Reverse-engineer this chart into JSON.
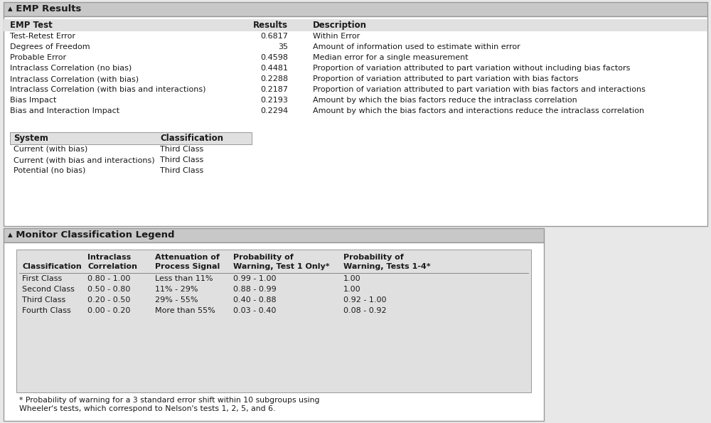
{
  "bg_color": "#e8e8e8",
  "panel_bg": "#ffffff",
  "section_header_bg": "#c8c8c8",
  "inner_table_bg": "#e0e0e0",
  "title1": "▴ EMP Results",
  "title2": "▴ Monitor Classification Legend",
  "emp_header": [
    "EMP Test",
    "Results",
    "Description"
  ],
  "emp_rows": [
    [
      "Test-Retest Error",
      "0.6817",
      "Within Error"
    ],
    [
      "Degrees of Freedom",
      "35",
      "Amount of information used to estimate within error"
    ],
    [
      "Probable Error",
      "0.4598",
      "Median error for a single measurement"
    ],
    [
      "Intraclass Correlation (no bias)",
      "0.4481",
      "Proportion of variation attributed to part variation without including bias factors"
    ],
    [
      "Intraclass Correlation (with bias)",
      "0.2288",
      "Proportion of variation attributed to part variation with bias factors"
    ],
    [
      "Intraclass Correlation (with bias and interactions)",
      "0.2187",
      "Proportion of variation attributed to part variation with bias factors and interactions"
    ],
    [
      "Bias Impact",
      "0.2193",
      "Amount by which the bias factors reduce the intraclass correlation"
    ],
    [
      "Bias and Interaction Impact",
      "0.2294",
      "Amount by which the bias factors and interactions reduce the intraclass correlation"
    ]
  ],
  "sys_header": [
    "System",
    "Classification"
  ],
  "sys_rows": [
    [
      "Current (with bias)",
      "Third Class"
    ],
    [
      "Current (with bias and interactions)",
      "Third Class"
    ],
    [
      "Potential (no bias)",
      "Third Class"
    ]
  ],
  "legend_col_headers_line1": [
    "",
    "Intraclass",
    "Attenuation of",
    "Probability of",
    "Probability of"
  ],
  "legend_col_headers_line2": [
    "Classification",
    "Correlation",
    "Process Signal",
    "Warning, Test 1 Only*",
    "Warning, Tests 1-4*"
  ],
  "legend_rows": [
    [
      "First Class",
      "0.80 - 1.00",
      "Less than 11%",
      "0.99 - 1.00",
      "1.00"
    ],
    [
      "Second Class",
      "0.50 - 0.80",
      "11% - 29%",
      "0.88 - 0.99",
      "1.00"
    ],
    [
      "Third Class",
      "0.20 - 0.50",
      "29% - 55%",
      "0.40 - 0.88",
      "0.92 - 1.00"
    ],
    [
      "Fourth Class",
      "0.00 - 0.20",
      "More than 55%",
      "0.03 - 0.40",
      "0.08 - 0.92"
    ]
  ],
  "footnote": "* Probability of warning for a 3 standard error shift within 10 subgroups using\nWheeler's tests, which correspond to Nelson's tests 1, 2, 5, and 6."
}
